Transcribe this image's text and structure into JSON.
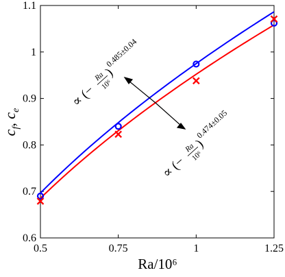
{
  "chart_data": {
    "type": "line",
    "xlabel": "Ra/10⁶",
    "ylabel_parts": {
      "a": "c",
      "a_sub": "f",
      "sep": ", ",
      "b": "c",
      "b_sub": "e"
    },
    "xlim": [
      0.5,
      1.25
    ],
    "ylim": [
      0.6,
      1.1
    ],
    "xticks": [
      0.5,
      0.75,
      1,
      1.25
    ],
    "xtick_labels": [
      "0.5",
      "0.75",
      "1",
      "1.25"
    ],
    "yticks": [
      0.6,
      0.7,
      0.8,
      0.9,
      1,
      1.1
    ],
    "ytick_labels": [
      "0.6",
      "0.7",
      "0.8",
      "0.9",
      "1",
      "1.1"
    ],
    "grid": false,
    "series": [
      {
        "color": "#0000ff",
        "marker": "circle",
        "x": [
          0.5,
          0.75,
          1,
          1.25
        ],
        "y": [
          0.69,
          0.84,
          0.974,
          1.062
        ],
        "fit": {
          "a": 0.975,
          "exponent": 0.485
        }
      },
      {
        "color": "#ff0000",
        "marker": "cross",
        "x": [
          0.5,
          0.75,
          1,
          1.25
        ],
        "y": [
          0.679,
          0.823,
          0.938,
          1.071
        ],
        "fit": {
          "a": 0.952,
          "exponent": 0.474
        }
      }
    ],
    "annotations": [
      {
        "text_prefix": "∝ (−",
        "num": "Ra",
        "den": "10⁶",
        "close": ")",
        "exponent": "0.485±0.04"
      },
      {
        "text_prefix": "∝ (−",
        "num": "Ra",
        "den": "10⁶",
        "close": ")",
        "exponent": "0.474±0.05"
      }
    ]
  }
}
